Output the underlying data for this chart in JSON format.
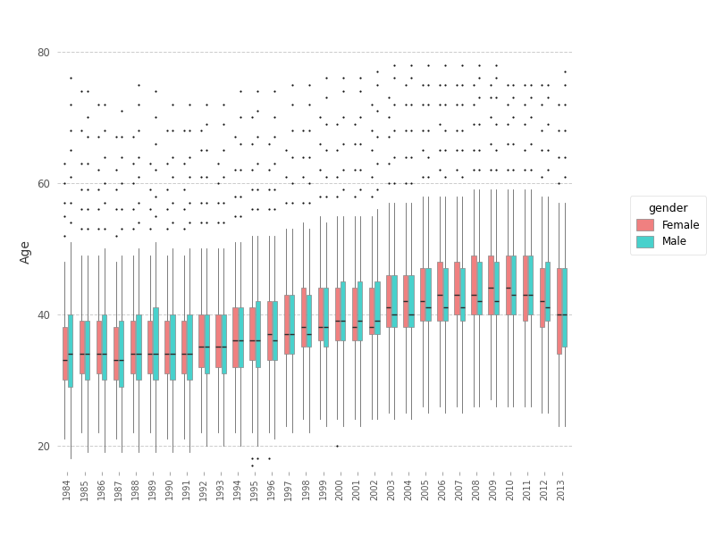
{
  "title": "",
  "ylabel": "Age",
  "xlabel": "",
  "years": [
    1984,
    1985,
    1986,
    1987,
    1988,
    1989,
    1990,
    1991,
    1992,
    1993,
    1994,
    1995,
    1996,
    1997,
    1998,
    1999,
    2000,
    2001,
    2002,
    2003,
    2004,
    2005,
    2006,
    2007,
    2008,
    2009,
    2010,
    2011,
    2012,
    2013
  ],
  "female_color": "#F08080",
  "male_color": "#48D1CC",
  "median_color": "#2a2a2a",
  "whisker_color": "#666666",
  "flier_color": "#111111",
  "background_color": "#ffffff",
  "panel_color": "#ffffff",
  "grid_color": "#cccccc",
  "ylim": [
    16,
    83
  ],
  "yticks": [
    20,
    40,
    60,
    80
  ],
  "female_stats": {
    "1984": {
      "q1": 30,
      "median": 33,
      "q3": 38,
      "whislo": 21,
      "whishi": 48,
      "fliers_above": [
        52,
        55,
        57,
        60,
        63
      ],
      "fliers_below": []
    },
    "1985": {
      "q1": 31,
      "median": 34,
      "q3": 39,
      "whislo": 22,
      "whishi": 49,
      "fliers_above": [
        53,
        56,
        59,
        63,
        68,
        74
      ],
      "fliers_below": []
    },
    "1986": {
      "q1": 31,
      "median": 34,
      "q3": 39,
      "whislo": 22,
      "whishi": 49,
      "fliers_above": [
        53,
        56,
        59,
        62,
        67,
        72
      ],
      "fliers_below": []
    },
    "1987": {
      "q1": 30,
      "median": 33,
      "q3": 38,
      "whislo": 21,
      "whishi": 48,
      "fliers_above": [
        52,
        56,
        59,
        62,
        67
      ],
      "fliers_below": []
    },
    "1988": {
      "q1": 31,
      "median": 34,
      "q3": 39,
      "whislo": 22,
      "whishi": 49,
      "fliers_above": [
        53,
        56,
        60,
        63,
        67
      ],
      "fliers_below": []
    },
    "1989": {
      "q1": 31,
      "median": 34,
      "q3": 39,
      "whislo": 22,
      "whishi": 49,
      "fliers_above": [
        53,
        56,
        59,
        63
      ],
      "fliers_below": []
    },
    "1990": {
      "q1": 31,
      "median": 34,
      "q3": 39,
      "whislo": 21,
      "whishi": 49,
      "fliers_above": [
        53,
        56,
        59,
        63,
        68
      ],
      "fliers_below": []
    },
    "1991": {
      "q1": 31,
      "median": 34,
      "q3": 39,
      "whislo": 21,
      "whishi": 49,
      "fliers_above": [
        53,
        56,
        59,
        63,
        68
      ],
      "fliers_below": []
    },
    "1992": {
      "q1": 32,
      "median": 35,
      "q3": 40,
      "whislo": 22,
      "whishi": 50,
      "fliers_above": [
        54,
        57,
        61,
        65,
        68
      ],
      "fliers_below": []
    },
    "1993": {
      "q1": 32,
      "median": 35,
      "q3": 40,
      "whislo": 22,
      "whishi": 50,
      "fliers_above": [
        54,
        57,
        60,
        63
      ],
      "fliers_below": []
    },
    "1994": {
      "q1": 32,
      "median": 36,
      "q3": 41,
      "whislo": 22,
      "whishi": 51,
      "fliers_above": [
        55,
        58,
        62,
        67
      ],
      "fliers_below": []
    },
    "1995": {
      "q1": 33,
      "median": 36,
      "q3": 41,
      "whislo": 22,
      "whishi": 52,
      "fliers_above": [
        56,
        59,
        62,
        66,
        70
      ],
      "fliers_below": [
        17,
        18
      ]
    },
    "1996": {
      "q1": 33,
      "median": 37,
      "q3": 42,
      "whislo": 22,
      "whishi": 52,
      "fliers_above": [
        56,
        59,
        62,
        66
      ],
      "fliers_below": [
        18
      ]
    },
    "1997": {
      "q1": 34,
      "median": 37,
      "q3": 43,
      "whislo": 23,
      "whishi": 53,
      "fliers_above": [
        57,
        61,
        65
      ],
      "fliers_below": []
    },
    "1998": {
      "q1": 35,
      "median": 38,
      "q3": 44,
      "whislo": 24,
      "whishi": 54,
      "fliers_above": [
        57,
        61,
        64,
        68
      ],
      "fliers_below": []
    },
    "1999": {
      "q1": 36,
      "median": 38,
      "q3": 44,
      "whislo": 24,
      "whishi": 55,
      "fliers_above": [
        58,
        62,
        66,
        70
      ],
      "fliers_below": []
    },
    "2000": {
      "q1": 36,
      "median": 39,
      "q3": 44,
      "whislo": 24,
      "whishi": 55,
      "fliers_above": [
        58,
        61,
        65,
        69
      ],
      "fliers_below": [
        20
      ]
    },
    "2001": {
      "q1": 36,
      "median": 38,
      "q3": 44,
      "whislo": 24,
      "whishi": 55,
      "fliers_above": [
        58,
        62,
        66,
        69
      ],
      "fliers_below": []
    },
    "2002": {
      "q1": 37,
      "median": 38,
      "q3": 44,
      "whislo": 24,
      "whishi": 55,
      "fliers_above": [
        58,
        61,
        65,
        68,
        72
      ],
      "fliers_below": []
    },
    "2003": {
      "q1": 38,
      "median": 41,
      "q3": 46,
      "whislo": 25,
      "whishi": 57,
      "fliers_above": [
        60,
        63,
        67,
        70,
        73
      ],
      "fliers_below": []
    },
    "2004": {
      "q1": 38,
      "median": 42,
      "q3": 46,
      "whislo": 25,
      "whishi": 57,
      "fliers_above": [
        60,
        64,
        68,
        72,
        75
      ],
      "fliers_below": []
    },
    "2005": {
      "q1": 39,
      "median": 42,
      "q3": 47,
      "whislo": 26,
      "whishi": 58,
      "fliers_above": [
        61,
        65,
        68,
        72,
        75
      ],
      "fliers_below": []
    },
    "2006": {
      "q1": 39,
      "median": 43,
      "q3": 48,
      "whislo": 26,
      "whishi": 58,
      "fliers_above": [
        62,
        65,
        69,
        72,
        75
      ],
      "fliers_below": []
    },
    "2007": {
      "q1": 40,
      "median": 43,
      "q3": 48,
      "whislo": 26,
      "whishi": 58,
      "fliers_above": [
        62,
        65,
        68,
        72,
        75
      ],
      "fliers_below": []
    },
    "2008": {
      "q1": 40,
      "median": 43,
      "q3": 49,
      "whislo": 26,
      "whishi": 59,
      "fliers_above": [
        62,
        65,
        69,
        72,
        75
      ],
      "fliers_below": []
    },
    "2009": {
      "q1": 40,
      "median": 44,
      "q3": 49,
      "whislo": 27,
      "whishi": 59,
      "fliers_above": [
        62,
        66,
        70,
        73,
        75
      ],
      "fliers_below": []
    },
    "2010": {
      "q1": 40,
      "median": 44,
      "q3": 49,
      "whislo": 26,
      "whishi": 59,
      "fliers_above": [
        62,
        66,
        69,
        72,
        75
      ],
      "fliers_below": []
    },
    "2011": {
      "q1": 39,
      "median": 43,
      "q3": 49,
      "whislo": 26,
      "whishi": 59,
      "fliers_above": [
        62,
        65,
        69,
        72,
        75
      ],
      "fliers_below": []
    },
    "2012": {
      "q1": 38,
      "median": 42,
      "q3": 47,
      "whislo": 25,
      "whishi": 58,
      "fliers_above": [
        61,
        65,
        68,
        72,
        75
      ],
      "fliers_below": []
    },
    "2013": {
      "q1": 34,
      "median": 40,
      "q3": 47,
      "whislo": 23,
      "whishi": 57,
      "fliers_above": [
        60,
        64,
        68,
        72
      ],
      "fliers_below": []
    }
  },
  "male_stats": {
    "1984": {
      "q1": 29,
      "median": 34,
      "q3": 40,
      "whislo": 18,
      "whishi": 51,
      "fliers_above": [
        54,
        57,
        61,
        65,
        68,
        72,
        76
      ],
      "fliers_below": []
    },
    "1985": {
      "q1": 30,
      "median": 34,
      "q3": 39,
      "whislo": 19,
      "whishi": 49,
      "fliers_above": [
        53,
        56,
        59,
        63,
        67,
        70,
        74
      ],
      "fliers_below": []
    },
    "1986": {
      "q1": 30,
      "median": 34,
      "q3": 40,
      "whislo": 19,
      "whishi": 50,
      "fliers_above": [
        53,
        57,
        60,
        64,
        68,
        72
      ],
      "fliers_below": []
    },
    "1987": {
      "q1": 29,
      "median": 33,
      "q3": 39,
      "whislo": 19,
      "whishi": 49,
      "fliers_above": [
        53,
        56,
        60,
        64,
        67,
        71
      ],
      "fliers_below": []
    },
    "1988": {
      "q1": 30,
      "median": 34,
      "q3": 40,
      "whislo": 19,
      "whishi": 50,
      "fliers_above": [
        54,
        57,
        61,
        64,
        68,
        72,
        75
      ],
      "fliers_below": []
    },
    "1989": {
      "q1": 30,
      "median": 34,
      "q3": 41,
      "whislo": 19,
      "whishi": 51,
      "fliers_above": [
        55,
        58,
        62,
        66,
        70,
        74
      ],
      "fliers_below": []
    },
    "1990": {
      "q1": 30,
      "median": 34,
      "q3": 40,
      "whislo": 19,
      "whishi": 50,
      "fliers_above": [
        54,
        57,
        61,
        64,
        68,
        72
      ],
      "fliers_below": []
    },
    "1991": {
      "q1": 30,
      "median": 34,
      "q3": 40,
      "whislo": 19,
      "whishi": 50,
      "fliers_above": [
        54,
        57,
        61,
        64,
        68,
        72
      ],
      "fliers_below": []
    },
    "1992": {
      "q1": 31,
      "median": 35,
      "q3": 40,
      "whislo": 20,
      "whishi": 50,
      "fliers_above": [
        54,
        57,
        61,
        65,
        69,
        72
      ],
      "fliers_below": []
    },
    "1993": {
      "q1": 31,
      "median": 35,
      "q3": 40,
      "whislo": 20,
      "whishi": 50,
      "fliers_above": [
        54,
        57,
        61,
        65,
        69,
        72
      ],
      "fliers_below": []
    },
    "1994": {
      "q1": 32,
      "median": 36,
      "q3": 41,
      "whislo": 20,
      "whishi": 51,
      "fliers_above": [
        55,
        58,
        62,
        66,
        70,
        74
      ],
      "fliers_below": []
    },
    "1995": {
      "q1": 32,
      "median": 36,
      "q3": 42,
      "whislo": 20,
      "whishi": 52,
      "fliers_above": [
        56,
        59,
        63,
        67,
        71,
        74
      ],
      "fliers_below": [
        18
      ]
    },
    "1996": {
      "q1": 33,
      "median": 36,
      "q3": 42,
      "whislo": 21,
      "whishi": 52,
      "fliers_above": [
        56,
        59,
        63,
        67,
        70,
        74
      ],
      "fliers_below": []
    },
    "1997": {
      "q1": 34,
      "median": 37,
      "q3": 43,
      "whislo": 22,
      "whishi": 53,
      "fliers_above": [
        57,
        60,
        64,
        68,
        72,
        75
      ],
      "fliers_below": []
    },
    "1998": {
      "q1": 35,
      "median": 37,
      "q3": 43,
      "whislo": 22,
      "whishi": 53,
      "fliers_above": [
        57,
        60,
        64,
        68,
        72,
        75
      ],
      "fliers_below": []
    },
    "1999": {
      "q1": 35,
      "median": 38,
      "q3": 44,
      "whislo": 23,
      "whishi": 54,
      "fliers_above": [
        58,
        61,
        65,
        69,
        73,
        76
      ],
      "fliers_below": []
    },
    "2000": {
      "q1": 36,
      "median": 39,
      "q3": 45,
      "whislo": 23,
      "whishi": 55,
      "fliers_above": [
        59,
        62,
        66,
        70,
        74,
        76
      ],
      "fliers_below": []
    },
    "2001": {
      "q1": 36,
      "median": 39,
      "q3": 45,
      "whislo": 23,
      "whishi": 55,
      "fliers_above": [
        59,
        62,
        66,
        70,
        74,
        76
      ],
      "fliers_below": []
    },
    "2002": {
      "q1": 37,
      "median": 39,
      "q3": 45,
      "whislo": 24,
      "whishi": 56,
      "fliers_above": [
        59,
        63,
        67,
        71,
        75,
        77
      ],
      "fliers_below": []
    },
    "2003": {
      "q1": 38,
      "median": 40,
      "q3": 46,
      "whislo": 24,
      "whishi": 57,
      "fliers_above": [
        60,
        64,
        68,
        72,
        76,
        78
      ],
      "fliers_below": []
    },
    "2004": {
      "q1": 38,
      "median": 40,
      "q3": 46,
      "whislo": 24,
      "whishi": 57,
      "fliers_above": [
        60,
        64,
        68,
        72,
        76,
        78
      ],
      "fliers_below": []
    },
    "2005": {
      "q1": 39,
      "median": 41,
      "q3": 47,
      "whislo": 25,
      "whishi": 58,
      "fliers_above": [
        61,
        64,
        68,
        72,
        75,
        78
      ],
      "fliers_below": []
    },
    "2006": {
      "q1": 39,
      "median": 41,
      "q3": 47,
      "whislo": 25,
      "whishi": 58,
      "fliers_above": [
        61,
        65,
        68,
        72,
        75,
        78
      ],
      "fliers_below": []
    },
    "2007": {
      "q1": 39,
      "median": 41,
      "q3": 47,
      "whislo": 25,
      "whishi": 58,
      "fliers_above": [
        61,
        65,
        68,
        72,
        75,
        78
      ],
      "fliers_below": []
    },
    "2008": {
      "q1": 40,
      "median": 42,
      "q3": 48,
      "whislo": 26,
      "whishi": 59,
      "fliers_above": [
        62,
        65,
        69,
        73,
        76,
        78
      ],
      "fliers_below": []
    },
    "2009": {
      "q1": 40,
      "median": 42,
      "q3": 48,
      "whislo": 26,
      "whishi": 59,
      "fliers_above": [
        62,
        65,
        69,
        73,
        76,
        78
      ],
      "fliers_below": []
    },
    "2010": {
      "q1": 40,
      "median": 43,
      "q3": 49,
      "whislo": 26,
      "whishi": 59,
      "fliers_above": [
        62,
        66,
        70,
        73,
        75
      ],
      "fliers_below": []
    },
    "2011": {
      "q1": 40,
      "median": 43,
      "q3": 49,
      "whislo": 26,
      "whishi": 59,
      "fliers_above": [
        62,
        66,
        70,
        73,
        75
      ],
      "fliers_below": []
    },
    "2012": {
      "q1": 39,
      "median": 41,
      "q3": 48,
      "whislo": 25,
      "whishi": 58,
      "fliers_above": [
        62,
        65,
        69,
        73,
        75
      ],
      "fliers_below": []
    },
    "2013": {
      "q1": 35,
      "median": 40,
      "q3": 47,
      "whislo": 23,
      "whishi": 57,
      "fliers_above": [
        61,
        64,
        68,
        72,
        75,
        77
      ],
      "fliers_below": []
    }
  }
}
